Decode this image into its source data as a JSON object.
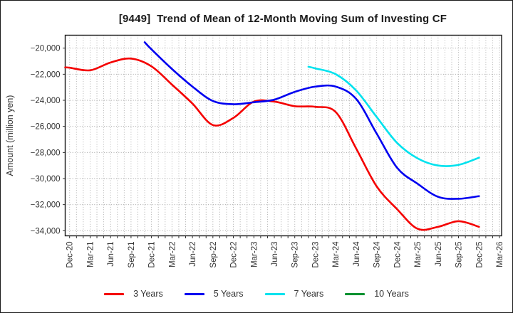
{
  "chart_data": {
    "type": "line",
    "title": "[9449]  Trend of Mean of 12-Month Moving Sum of Investing CF",
    "ylabel": "Amount (million yen)",
    "x_tick_labels": [
      "Dec-20",
      "Mar-21",
      "Jun-21",
      "Sep-21",
      "Dec-21",
      "Mar-22",
      "Jun-22",
      "Sep-22",
      "Dec-22",
      "Mar-23",
      "Jun-23",
      "Sep-23",
      "Dec-23",
      "Mar-24",
      "Jun-24",
      "Sep-24",
      "Dec-24",
      "Mar-25",
      "Jun-25",
      "Sep-25",
      "Dec-25",
      "Mar-26"
    ],
    "months_per_label": 3,
    "xlim_months": [
      -0.65,
      63.31
    ],
    "ylim": [
      -34390,
      -19010
    ],
    "y_ticks": [
      -20000,
      -22000,
      -24000,
      -26000,
      -28000,
      -30000,
      -32000,
      -34000
    ],
    "grid": true,
    "gridline_interval_months": 1,
    "legend_position": "bottom",
    "series": [
      {
        "name": "3 Years",
        "color": "#f40000",
        "start_month": 0,
        "step_months": 3,
        "pre": {
          "dm": -0.65,
          "value": -21480
        },
        "values": [
          -21500,
          -21700,
          -21100,
          -20800,
          -21400,
          -22800,
          -24250,
          -25900,
          -25350,
          -24100,
          -24100,
          -24450,
          -24500,
          -24900,
          -27700,
          -30600,
          -32350,
          -33850,
          -33700,
          -33270,
          -33700
        ]
      },
      {
        "name": "5 Years",
        "color": "#0000f0",
        "start_month": 12,
        "step_months": 3,
        "pre": {
          "dm": -1,
          "value": -19550
        },
        "values": [
          -20100,
          -21600,
          -22950,
          -24050,
          -24300,
          -24150,
          -23950,
          -23350,
          -22950,
          -22950,
          -23900,
          -26550,
          -29180,
          -30400,
          -31400,
          -31550,
          -31350
        ]
      },
      {
        "name": "7 Years",
        "color": "#00e2ee",
        "start_month": 36,
        "step_months": 3,
        "pre": {
          "dm": -1,
          "value": -21430
        },
        "values": [
          -21550,
          -22000,
          -23250,
          -25280,
          -27270,
          -28450,
          -29000,
          -28950,
          -28400
        ]
      },
      {
        "name": "10 Years",
        "color": "#0a9130",
        "start_month": null,
        "step_months": 3,
        "values": []
      }
    ]
  }
}
